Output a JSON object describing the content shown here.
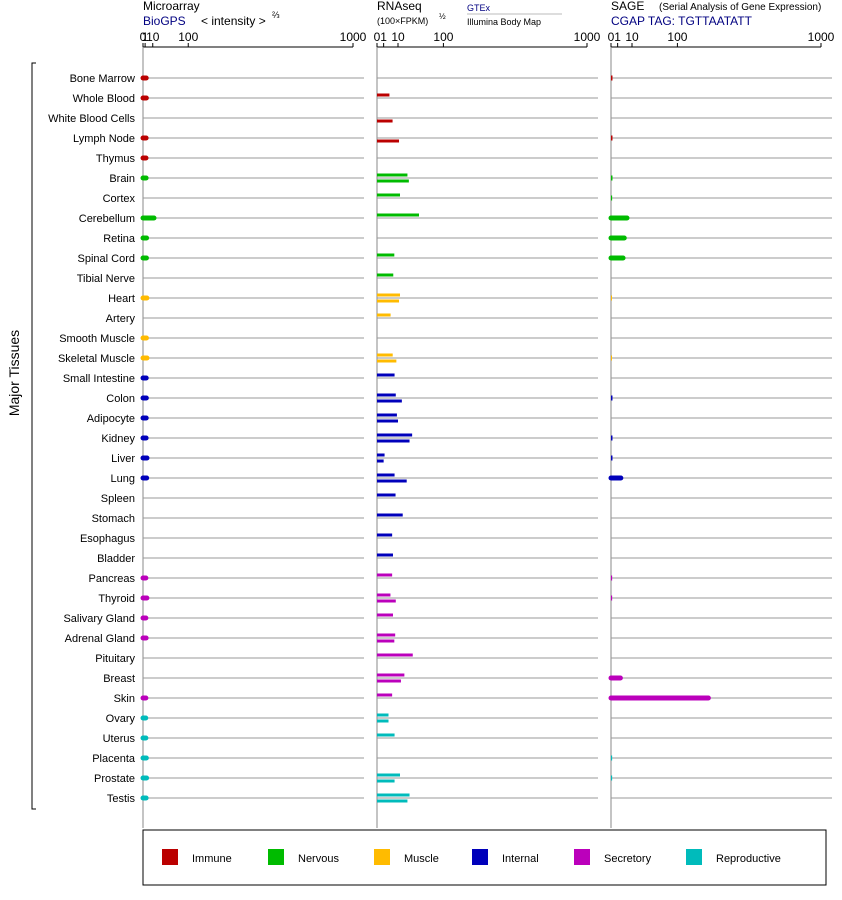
{
  "side_label": "Major Tissues",
  "panels": {
    "microarray": {
      "title": "Microarray",
      "source": "BioGPS",
      "scale_label": "< intensity >",
      "scale_exp": "⅔"
    },
    "rnaseq": {
      "title": "RNAseq",
      "scale_label": "(100×FPKM)",
      "scale_exp": "½",
      "source_top": "GTEx",
      "source_bottom": "Illumina Body Map"
    },
    "sage": {
      "title": "SAGE",
      "subtitle": "(Serial Analysis of Gene Expression)",
      "tag": "CGAP TAG: TGTTAATATT"
    }
  },
  "colors": {
    "Immune": "#bb0000",
    "Nervous": "#00bb00",
    "Muscle": "#ffbb00",
    "Internal": "#0000bb",
    "Secretory": "#bb00bb",
    "Reproductive": "#00bbbb"
  },
  "legend": [
    "Immune",
    "Nervous",
    "Muscle",
    "Internal",
    "Secretory",
    "Reproductive"
  ],
  "chart_data": {
    "type": "bar",
    "orientation": "horizontal",
    "ticks": [
      "0",
      "1",
      "10",
      "100",
      "1000"
    ],
    "tissues": [
      {
        "name": "Bone Marrow",
        "group": "Immune",
        "micro": 1.9,
        "rna_gtex": null,
        "rna_ibm": null,
        "sage": 0.05
      },
      {
        "name": "Whole Blood",
        "group": "Immune",
        "micro": 2.0,
        "rna_gtex": 3.5,
        "rna_ibm": null,
        "sage": 0
      },
      {
        "name": "White Blood Cells",
        "group": "Immune",
        "micro": null,
        "rna_gtex": null,
        "rna_ibm": 5.5,
        "sage": 0
      },
      {
        "name": "Lymph Node",
        "group": "Immune",
        "micro": 1.8,
        "rna_gtex": null,
        "rna_ibm": 11,
        "sage": 0.05
      },
      {
        "name": "Thymus",
        "group": "Immune",
        "micro": 1.7,
        "rna_gtex": null,
        "rna_ibm": null,
        "sage": 0
      },
      {
        "name": "Brain",
        "group": "Nervous",
        "micro": 1.8,
        "rna_gtex": 21,
        "rna_ibm": 23,
        "sage": 0.05
      },
      {
        "name": "Cortex",
        "group": "Nervous",
        "micro": null,
        "rna_gtex": 12,
        "rna_ibm": null,
        "sage": 0.03
      },
      {
        "name": "Cerebellum",
        "group": "Nervous",
        "micro": 12,
        "rna_gtex": 40,
        "rna_ibm": null,
        "sage": 5.8
      },
      {
        "name": "Retina",
        "group": "Nervous",
        "micro": 2.2,
        "rna_gtex": null,
        "rna_ibm": null,
        "sage": 4.0
      },
      {
        "name": "Spinal Cord",
        "group": "Nervous",
        "micro": 2.1,
        "rna_gtex": 6.8,
        "rna_ibm": null,
        "sage": 3.3
      },
      {
        "name": "Tibial Nerve",
        "group": "Nervous",
        "micro": null,
        "rna_gtex": 6.0,
        "rna_ibm": null,
        "sage": 0
      },
      {
        "name": "Heart",
        "group": "Muscle",
        "micro": 2.5,
        "rna_gtex": 12,
        "rna_ibm": 11,
        "sage": 0.02
      },
      {
        "name": "Artery",
        "group": "Muscle",
        "micro": null,
        "rna_gtex": 4.2,
        "rna_ibm": null,
        "sage": 0
      },
      {
        "name": "Smooth Muscle",
        "group": "Muscle",
        "micro": 2.1,
        "rna_gtex": null,
        "rna_ibm": null,
        "sage": 0
      },
      {
        "name": "Skeletal Muscle",
        "group": "Muscle",
        "micro": 2.6,
        "rna_gtex": 5.6,
        "rna_ibm": 8.5,
        "sage": 0.02
      },
      {
        "name": "Small Intestine",
        "group": "Internal",
        "micro": 1.9,
        "rna_gtex": 7.0,
        "rna_ibm": null,
        "sage": 0
      },
      {
        "name": "Colon",
        "group": "Internal",
        "micro": 2.0,
        "rna_gtex": 8.0,
        "rna_ibm": 14,
        "sage": 0.05
      },
      {
        "name": "Adipocyte",
        "group": "Internal",
        "micro": 1.9,
        "rna_gtex": 9.0,
        "rna_ibm": 10,
        "sage": 0
      },
      {
        "name": "Kidney",
        "group": "Internal",
        "micro": 1.8,
        "rna_gtex": 28,
        "rna_ibm": 24,
        "sage": 0.05
      },
      {
        "name": "Liver",
        "group": "Internal",
        "micro": 2.6,
        "rna_gtex": 1.3,
        "rna_ibm": 1.0,
        "sage": 0.05
      },
      {
        "name": "Lung",
        "group": "Internal",
        "micro": 2.3,
        "rna_gtex": 7.0,
        "rna_ibm": 20,
        "sage": 2.2
      },
      {
        "name": "Spleen",
        "group": "Internal",
        "micro": null,
        "rna_gtex": 7.8,
        "rna_ibm": null,
        "sage": 0
      },
      {
        "name": "Stomach",
        "group": "Internal",
        "micro": null,
        "rna_gtex": 15,
        "rna_ibm": null,
        "sage": 0
      },
      {
        "name": "Esophagus",
        "group": "Internal",
        "micro": null,
        "rna_gtex": 5.2,
        "rna_ibm": null,
        "sage": 0
      },
      {
        "name": "Bladder",
        "group": "Internal",
        "micro": null,
        "rna_gtex": 5.8,
        "rna_ibm": null,
        "sage": 0
      },
      {
        "name": "Pancreas",
        "group": "Secretory",
        "micro": 1.6,
        "rna_gtex": 5.2,
        "rna_ibm": null,
        "sage": 0.03
      },
      {
        "name": "Thyroid",
        "group": "Secretory",
        "micro": 2.5,
        "rna_gtex": 4.1,
        "rna_ibm": 8.0,
        "sage": 0.03
      },
      {
        "name": "Salivary Gland",
        "group": "Secretory",
        "micro": 1.6,
        "rna_gtex": 5.8,
        "rna_ibm": null,
        "sage": 0
      },
      {
        "name": "Adrenal Gland",
        "group": "Secretory",
        "micro": 1.8,
        "rna_gtex": 7.5,
        "rna_ibm": 6.8,
        "sage": 0
      },
      {
        "name": "Pituitary",
        "group": "Secretory",
        "micro": null,
        "rna_gtex": 29,
        "rna_ibm": null,
        "sage": 0
      },
      {
        "name": "Breast",
        "group": "Secretory",
        "micro": null,
        "rna_gtex": 17,
        "rna_ibm": 13,
        "sage": 2.0
      },
      {
        "name": "Skin",
        "group": "Secretory",
        "micro": 1.6,
        "rna_gtex": 5.2,
        "rna_ibm": null,
        "sage": 215
      },
      {
        "name": "Ovary",
        "group": "Reproductive",
        "micro": 1.5,
        "rna_gtex": 3.0,
        "rna_ibm": 3.0,
        "sage": 0
      },
      {
        "name": "Uterus",
        "group": "Reproductive",
        "micro": 1.6,
        "rna_gtex": 7.0,
        "rna_ibm": null,
        "sage": 0
      },
      {
        "name": "Placenta",
        "group": "Reproductive",
        "micro": 2.0,
        "rna_gtex": null,
        "rna_ibm": null,
        "sage": 0.03
      },
      {
        "name": "Prostate",
        "group": "Reproductive",
        "micro": 2.2,
        "rna_gtex": 12,
        "rna_ibm": 7.0,
        "sage": 0.03
      },
      {
        "name": "Testis",
        "group": "Reproductive",
        "micro": 1.8,
        "rna_gtex": 24,
        "rna_ibm": 21,
        "sage": 0
      }
    ]
  }
}
